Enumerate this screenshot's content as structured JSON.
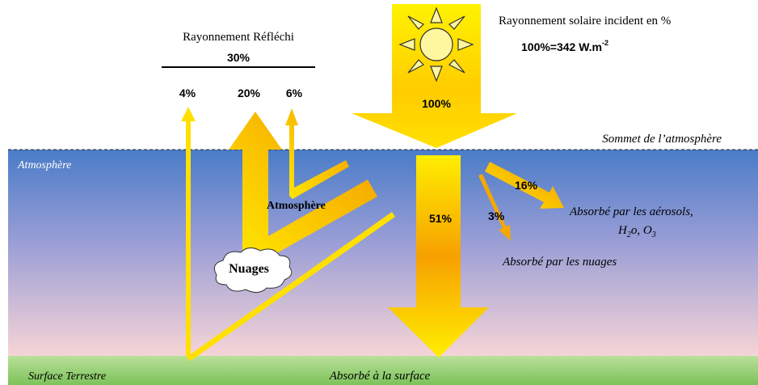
{
  "incident": {
    "title": "Rayonnement solaire incident en %",
    "unit": "100%=342 W.m",
    "unit_exponent": "-2",
    "total": "100%"
  },
  "reflected": {
    "title": "Rayonnement Réfléchi",
    "total": "30%",
    "parts": [
      "4%",
      "20%",
      "6%"
    ]
  },
  "levels": {
    "top": "Sommet de l’atmosphère",
    "atmosphere": "Atmosphère",
    "surface": "Surface Terrestre"
  },
  "labels": {
    "atmosphere_arrow": "Atmosphère",
    "clouds": "Nuages",
    "surface_pct": "51%",
    "aerosol_pct": "16%",
    "cloud_pct": "3%",
    "aerosols_line1": "Absorbé par les aérosols,",
    "aerosols_line2": [
      "H",
      "2",
      "o, O",
      "3"
    ],
    "clouds_absorbed": "Absorbé par les nuages",
    "surface_absorbed": "Absorbé à la surface"
  }
}
